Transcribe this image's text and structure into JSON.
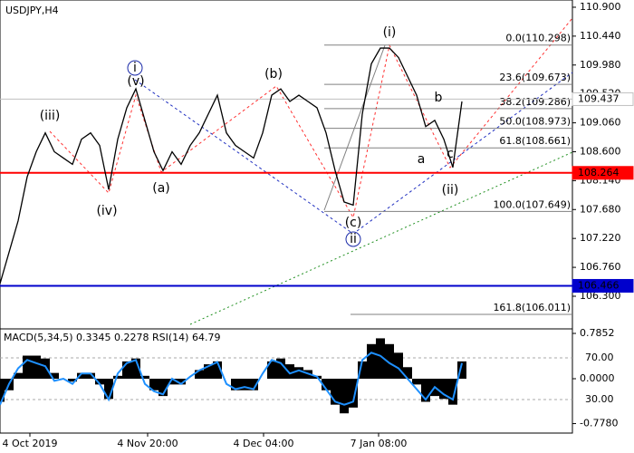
{
  "chart_data": [
    {
      "type": "line",
      "title": "USDJPY,H4",
      "color": "#000000",
      "x": [
        0,
        10,
        20,
        30,
        40,
        50,
        60,
        70,
        80,
        90,
        100,
        110,
        120,
        130,
        140,
        150,
        160,
        170,
        180,
        190,
        200,
        210,
        220,
        230,
        240,
        250,
        260,
        270,
        280,
        290,
        300,
        310,
        320,
        330,
        340,
        350,
        360,
        370,
        380,
        390,
        400,
        410,
        420,
        430,
        440,
        450,
        460,
        470,
        480,
        490,
        500,
        510
      ],
      "values": [
        106.5,
        107.0,
        107.5,
        108.2,
        108.6,
        108.9,
        108.6,
        108.5,
        108.4,
        108.8,
        108.9,
        108.7,
        108.0,
        108.8,
        109.3,
        109.6,
        109.1,
        108.6,
        108.3,
        108.6,
        108.4,
        108.7,
        108.9,
        109.2,
        109.5,
        108.9,
        108.7,
        108.6,
        108.5,
        108.9,
        109.5,
        109.6,
        109.4,
        109.5,
        109.4,
        109.3,
        108.9,
        108.3,
        107.8,
        107.75,
        109.2,
        110.0,
        110.25,
        110.25,
        110.1,
        109.8,
        109.5,
        109.0,
        109.1,
        108.8,
        108.35,
        109.4
      ],
      "xlim": [
        0,
        632
      ],
      "xticks": [
        {
          "value": 33,
          "label": "4 Oct 2019"
        },
        {
          "value": 163,
          "label": "4 Nov 20:00"
        },
        {
          "value": 291,
          "label": "4 Dec 04:00"
        },
        {
          "value": 418,
          "label": "7 Jan 08:00"
        }
      ],
      "ylim": [
        105.795,
        111.015
      ],
      "yticks": [
        {
          "value": 110.9,
          "label": "110.900"
        },
        {
          "value": 110.44,
          "label": "110.440"
        },
        {
          "value": 109.98,
          "label": "109.980"
        },
        {
          "value": 109.52,
          "label": "109.520"
        },
        {
          "value": 109.06,
          "label": "109.060"
        },
        {
          "value": 108.6,
          "label": "108.600"
        },
        {
          "value": 108.14,
          "label": "108.140"
        },
        {
          "value": 107.68,
          "label": "107.680"
        },
        {
          "value": 107.22,
          "label": "107.220"
        },
        {
          "value": 106.76,
          "label": "106.760"
        },
        {
          "value": 106.3,
          "label": "106.300"
        }
      ],
      "levels": [
        {
          "value": 109.437,
          "color": "#c0c0c0"
        },
        {
          "value": 108.264,
          "color": "#ff0000"
        },
        {
          "value": 106.466,
          "color": "#0000cc"
        }
      ],
      "fibonacci": [
        {
          "value": 110.298,
          "label": "0.0(110.298)"
        },
        {
          "value": 109.673,
          "label": "23.6(109.673)"
        },
        {
          "value": 109.286,
          "label": "38.2(109.286)"
        },
        {
          "value": 108.973,
          "label": "50.0(108.973)"
        },
        {
          "value": 108.661,
          "label": "61.8(108.661)"
        },
        {
          "value": 107.649,
          "label": "100.0(107.649)"
        },
        {
          "value": 106.011,
          "label": "161.8(106.011)"
        }
      ],
      "annotations": [
        {
          "text": "(iii)",
          "color": "#e02020"
        },
        {
          "text": "(iv)",
          "color": "#e02020"
        },
        {
          "text": "(v)",
          "color": "#e02020"
        },
        {
          "text": "i",
          "color": "#1a2aa8",
          "circled": true
        },
        {
          "text": "(a)",
          "color": "#e02020"
        },
        {
          "text": "(b)",
          "color": "#e02020"
        },
        {
          "text": "(c)",
          "color": "#e02020"
        },
        {
          "text": "ii",
          "color": "#1a2aa8",
          "circled": true
        },
        {
          "text": "(i)",
          "color": "#e02020"
        },
        {
          "text": "a",
          "color": "#808080"
        },
        {
          "text": "b",
          "color": "#808080"
        },
        {
          "text": "c",
          "color": "#808080"
        },
        {
          "text": "(ii)",
          "color": "#e02020"
        }
      ]
    },
    {
      "type": "macd",
      "title": "MACD(5,34,5) 0.3345 0.2278 RSI(14) 64.79",
      "ylim": [
        -0.942,
        0.848
      ],
      "yticks": [
        {
          "value": 0.7852,
          "label": "0.7852"
        },
        {
          "value": 0,
          "label": "0.0000"
        },
        {
          "value": -0.778,
          "label": "-0.7780"
        }
      ],
      "y2lim": [
        -2.2,
        97
      ],
      "y2ticks": [
        {
          "value": 70,
          "label": "70.00"
        },
        {
          "value": 30,
          "label": "30.00"
        }
      ],
      "series": [
        {
          "color": "#000000",
          "values": [
            -0.4,
            -0.2,
            0.1,
            0.4,
            0.4,
            0.35,
            0.1,
            0.0,
            -0.05,
            0.1,
            0.1,
            -0.1,
            -0.35,
            0.05,
            0.3,
            0.35,
            0.05,
            -0.2,
            -0.3,
            -0.1,
            -0.1,
            0.0,
            0.15,
            0.25,
            0.3,
            0.0,
            -0.2,
            -0.2,
            -0.2,
            0.0,
            0.3,
            0.35,
            0.25,
            0.2,
            0.15,
            0.05,
            -0.2,
            -0.45,
            -0.6,
            -0.5,
            0.3,
            0.6,
            0.7,
            0.6,
            0.45,
            0.2,
            -0.1,
            -0.4,
            -0.3,
            -0.35,
            -0.45,
            0.3
          ]
        },
        {
          "color": "#1e90ff",
          "axis": "y2",
          "values": [
            25,
            45,
            60,
            68,
            65,
            62,
            48,
            50,
            45,
            55,
            55,
            45,
            30,
            55,
            65,
            68,
            45,
            38,
            35,
            50,
            45,
            52,
            58,
            62,
            66,
            45,
            40,
            42,
            40,
            55,
            68,
            65,
            55,
            58,
            55,
            52,
            40,
            28,
            25,
            28,
            68,
            75,
            72,
            65,
            60,
            50,
            40,
            30,
            42,
            35,
            30,
            65
          ]
        }
      ]
    }
  ]
}
